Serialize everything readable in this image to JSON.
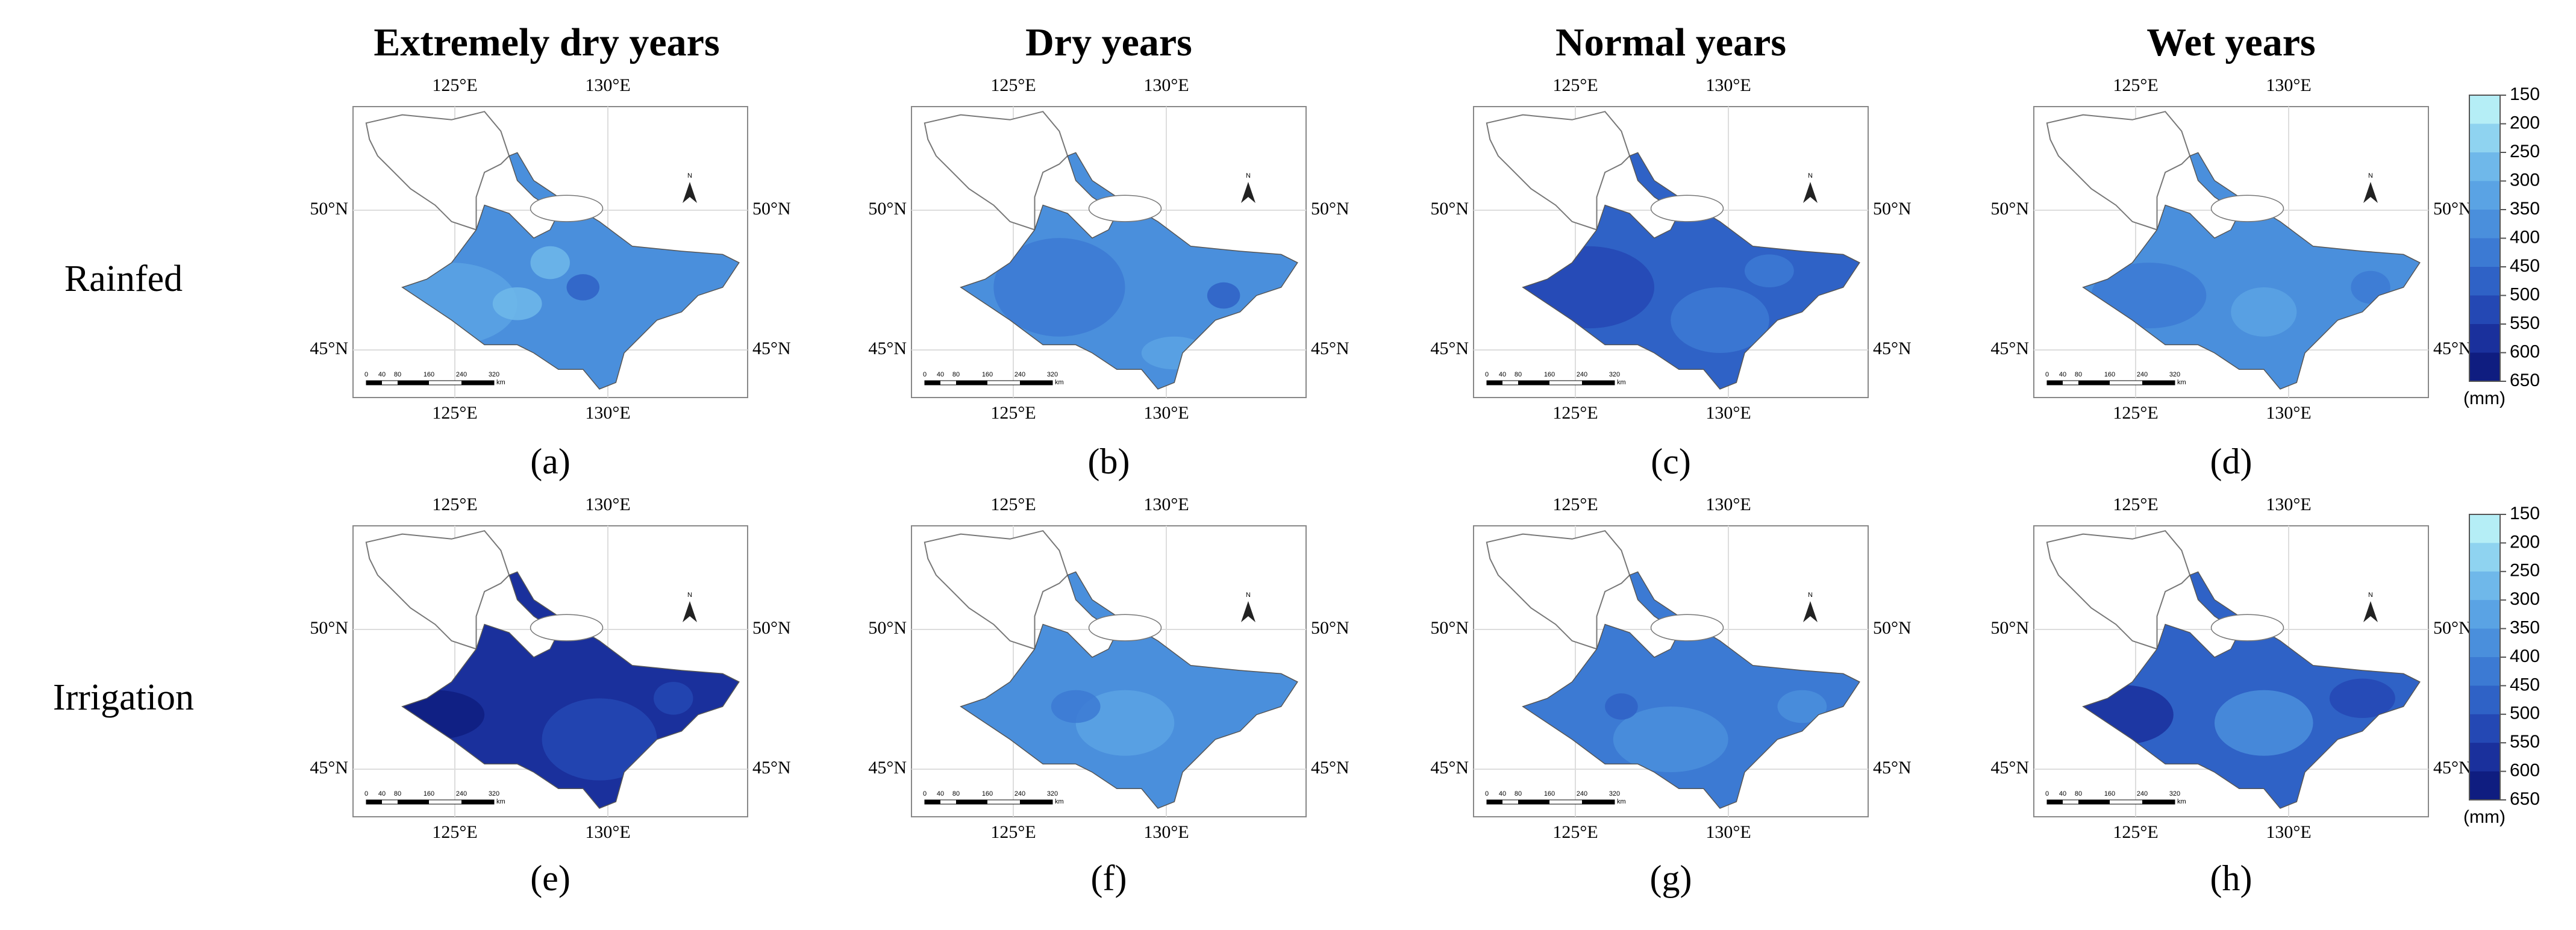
{
  "figure": {
    "columns": [
      "Extremely dry years",
      "Dry years",
      "Normal years",
      "Wet years"
    ],
    "rows": [
      "Rainfed",
      "Irrigation"
    ],
    "panels": [
      "(a)",
      "(b)",
      "(c)",
      "(d)",
      "(e)",
      "(f)",
      "(g)",
      "(h)"
    ],
    "lon_labels": [
      "125°E",
      "130°E"
    ],
    "lat_labels": [
      "50°N",
      "45°N"
    ],
    "north": "N",
    "scale_labels": [
      "0",
      "40",
      "80",
      "160",
      "240",
      "320"
    ],
    "scale_unit": "km",
    "legend": {
      "ticks": [
        150,
        200,
        250,
        300,
        350,
        400,
        450,
        500,
        550,
        600,
        650
      ],
      "unit": "(mm)",
      "colors": [
        "#b5eef6",
        "#8fd3f0",
        "#6fb8ea",
        "#5aa3e4",
        "#4a8fdc",
        "#3c7ad3",
        "#2f62c6",
        "#2448b4",
        "#1a309c",
        "#0f1d80"
      ]
    }
  }
}
